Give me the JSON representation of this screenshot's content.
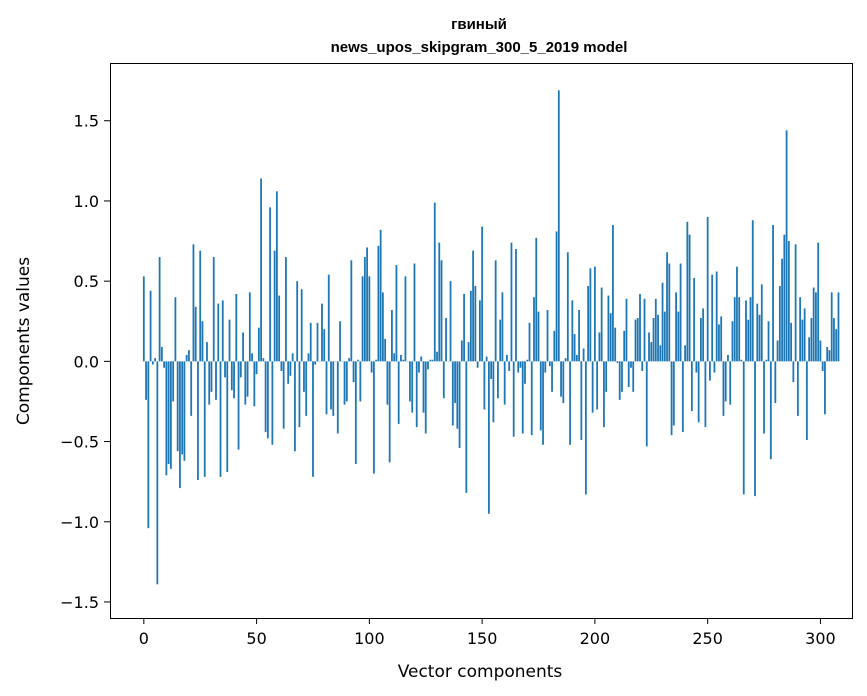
{
  "chart_data": {
    "type": "bar",
    "title": "гвиный",
    "subtitle": "news_upos_skipgram_300_5_2019 model",
    "xlabel": "Vector components",
    "ylabel": "Components values",
    "xlim": [
      -15,
      314
    ],
    "ylim": [
      -1.6,
      1.86
    ],
    "xticks": [
      0,
      50,
      100,
      150,
      200,
      250,
      300
    ],
    "yticks": [
      -1.5,
      -1.0,
      -0.5,
      0.0,
      0.5,
      1.0,
      1.5
    ],
    "ytick_labels": [
      "−1.5",
      "−1.0",
      "−0.5",
      "0.0",
      "0.5",
      "1.0",
      "1.5"
    ],
    "bar_color": "#1f77b4",
    "grid": false,
    "values": [
      0.53,
      -0.24,
      -1.04,
      0.44,
      -0.02,
      0.02,
      -1.39,
      0.65,
      0.09,
      -0.04,
      -0.71,
      -0.64,
      -0.67,
      -0.25,
      0.4,
      -0.56,
      -0.79,
      -0.58,
      -0.62,
      0.04,
      0.07,
      -0.34,
      0.73,
      0.34,
      -0.74,
      0.69,
      0.25,
      -0.72,
      0.12,
      -0.27,
      -0.19,
      0.65,
      -0.24,
      0.36,
      -0.72,
      0.38,
      -0.1,
      -0.69,
      0.26,
      -0.18,
      -0.23,
      0.42,
      -0.55,
      -0.1,
      0.18,
      -0.27,
      -0.22,
      0.43,
      0.05,
      -0.28,
      -0.08,
      0.21,
      1.14,
      0.02,
      -0.44,
      -0.48,
      0.96,
      -0.52,
      0.69,
      1.06,
      0.41,
      -0.06,
      -0.42,
      0.65,
      -0.14,
      -0.09,
      0.05,
      -0.56,
      0.5,
      -0.41,
      0.45,
      -0.19,
      -0.34,
      0.05,
      0.24,
      -0.72,
      -0.02,
      0.24,
      0.0,
      0.36,
      0.2,
      -0.33,
      0.54,
      -0.3,
      -0.34,
      0.0,
      -0.45,
      0.25,
      0.0,
      -0.27,
      -0.25,
      0.02,
      0.63,
      -0.13,
      -0.64,
      0.01,
      -0.25,
      0.53,
      0.65,
      0.71,
      0.53,
      -0.07,
      -0.7,
      0.01,
      0.72,
      0.82,
      0.43,
      0.14,
      -0.27,
      -0.63,
      0.32,
      0.05,
      0.6,
      -0.39,
      0.04,
      0.01,
      0.53,
      0.0,
      -0.25,
      -0.32,
      0.61,
      -0.41,
      -0.07,
      0.03,
      -0.32,
      -0.45,
      -0.05,
      0.01,
      0.01,
      0.99,
      0.06,
      0.74,
      0.63,
      -0.23,
      0.27,
      0.0,
      0.5,
      -0.4,
      -0.26,
      -0.42,
      -0.54,
      0.13,
      0.42,
      -0.82,
      0.12,
      0.44,
      0.69,
      0.47,
      -0.04,
      0.38,
      0.84,
      -0.3,
      0.03,
      -0.95,
      -0.11,
      -0.38,
      0.63,
      -0.23,
      0.26,
      0.43,
      -0.27,
      0.04,
      -0.06,
      0.74,
      -0.47,
      0.7,
      -0.07,
      -0.04,
      -0.45,
      -0.14,
      0.01,
      0.24,
      -0.46,
      0.4,
      0.77,
      0.31,
      -0.43,
      -0.52,
      -0.07,
      0.32,
      -0.03,
      -0.19,
      0.19,
      0.81,
      1.69,
      -0.22,
      -0.26,
      0.02,
      0.68,
      -0.52,
      0.38,
      0.17,
      0.04,
      0.32,
      -0.49,
      0.08,
      -0.83,
      0.47,
      0.58,
      -0.32,
      0.59,
      -0.3,
      0.18,
      0.46,
      -0.41,
      -0.19,
      0.41,
      0.3,
      0.85,
      0.21,
      -0.01,
      -0.24,
      -0.19,
      0.19,
      0.39,
      -0.16,
      -0.04,
      -0.19,
      0.26,
      0.27,
      0.42,
      -0.06,
      0.39,
      -0.53,
      0.18,
      0.12,
      0.27,
      0.39,
      0.29,
      0.1,
      0.49,
      0.31,
      0.68,
      0.61,
      -0.46,
      -0.4,
      0.43,
      0.31,
      0.61,
      -0.44,
      0.1,
      0.87,
      0.79,
      -0.31,
      0.52,
      -0.07,
      -0.38,
      0.27,
      0.33,
      -0.41,
      0.9,
      -0.12,
      0.54,
      -0.07,
      0.56,
      0.23,
      0.28,
      -0.34,
      -0.25,
      0.04,
      -0.27,
      0.25,
      0.4,
      0.59,
      0.4,
      0.01,
      -0.83,
      0.38,
      0.26,
      0.4,
      0.88,
      -0.84,
      0.36,
      0.29,
      0.48,
      -0.45,
      0.01,
      0.25,
      -0.61,
      0.85,
      -0.26,
      0.13,
      0.47,
      0.64,
      0.79,
      1.44,
      0.75,
      0.24,
      -0.13,
      0.73,
      -0.34,
      0.4,
      0.26,
      0.33,
      -0.49,
      0.15,
      0.27,
      0.46,
      0.43,
      0.74,
      0.13,
      -0.06,
      -0.33,
      0.09,
      0.07,
      0.43,
      0.27,
      0.2,
      0.43
    ]
  }
}
